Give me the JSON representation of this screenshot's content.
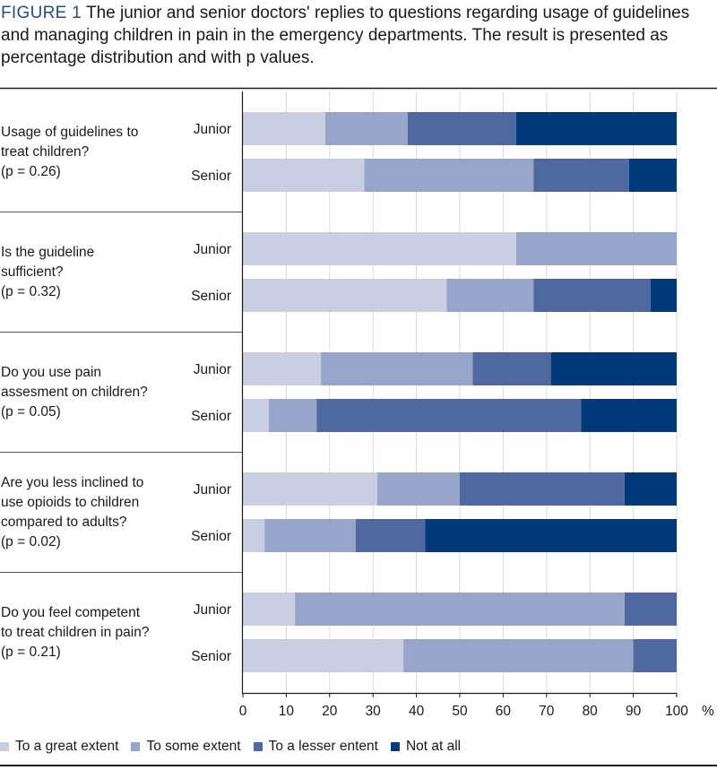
{
  "caption": {
    "label": "FIGURE 1",
    "text": "The junior and senior doctors' replies to questions regarding usage of guidelines and managing children in pain in the emergency departments. The result is presented as percentage distribution and with p values."
  },
  "chart_data": {
    "type": "bar",
    "orientation": "horizontal",
    "stacked": true,
    "xlim": [
      0,
      100
    ],
    "xticks": [
      "0",
      "10",
      "20",
      "30",
      "40",
      "50",
      "60",
      "70",
      "80",
      "90",
      "100"
    ],
    "x_unit": "%",
    "series": [
      {
        "name": "To a great extent",
        "color": "#c9cee3"
      },
      {
        "name": "To some extent",
        "color": "#97a5cb"
      },
      {
        "name": "To a lesser entent",
        "color": "#5068a0"
      },
      {
        "name": "Not at all",
        "color": "#003a7a"
      }
    ],
    "groups": [
      {
        "question": [
          "Usage of guidelines to",
          "treat children?",
          "(p = 0.26)"
        ],
        "bars": [
          {
            "label": "Junior",
            "values": [
              19,
              19,
              25,
              37
            ]
          },
          {
            "label": "Senior",
            "values": [
              28,
              39,
              22,
              11
            ]
          }
        ]
      },
      {
        "question": [
          "Is the guideline",
          "sufficient?",
          "(p = 0.32)"
        ],
        "bars": [
          {
            "label": "Junior",
            "values": [
              63,
              37,
              0,
              0
            ]
          },
          {
            "label": "Senior",
            "values": [
              47,
              20,
              27,
              6
            ]
          }
        ]
      },
      {
        "question": [
          "Do you use pain",
          "assesment on children?",
          "(p = 0.05)"
        ],
        "bars": [
          {
            "label": "Junior",
            "values": [
              18,
              35,
              18,
              29
            ]
          },
          {
            "label": "Senior",
            "values": [
              6,
              11,
              61,
              22
            ]
          }
        ]
      },
      {
        "question": [
          "Are you less inclined to",
          "use opioids to children",
          "compared to adults?",
          "(p = 0.02)"
        ],
        "bars": [
          {
            "label": "Junior",
            "values": [
              31,
              19,
              38,
              12
            ]
          },
          {
            "label": "Senior",
            "values": [
              5,
              21,
              16,
              58
            ]
          }
        ]
      },
      {
        "question": [
          "Do you feel competent",
          "to treat children in pain?",
          "(p = 0.21)"
        ],
        "bars": [
          {
            "label": "Junior",
            "values": [
              12,
              76,
              12,
              0
            ]
          },
          {
            "label": "Senior",
            "values": [
              37,
              53,
              10,
              0
            ]
          }
        ]
      }
    ]
  }
}
